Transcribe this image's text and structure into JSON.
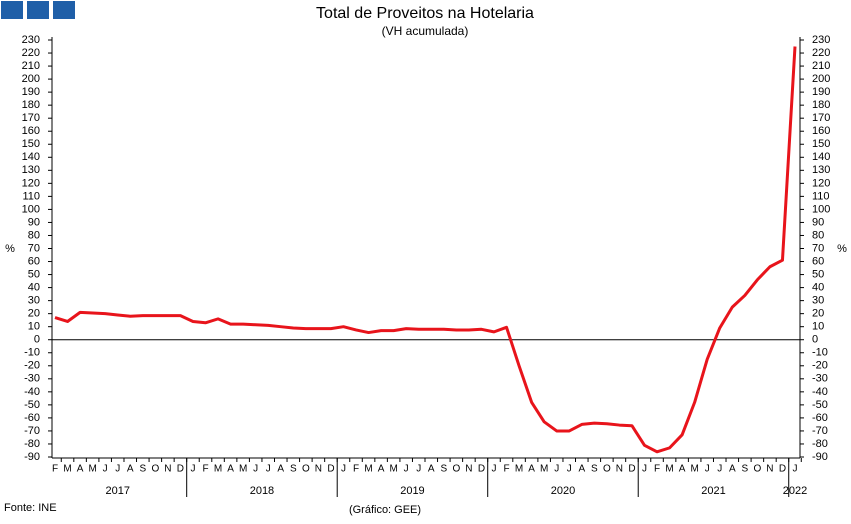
{
  "chart_data": {
    "type": "line",
    "title": "Total de Proveitos na Hotelaria",
    "subtitle": "(VH acumulada)",
    "y_label": "%",
    "source": "Fonte: INE",
    "credit": "(Gráfico: GEE)",
    "color": "#e8141b",
    "categories": [
      "F",
      "M",
      "A",
      "M",
      "J",
      "J",
      "A",
      "S",
      "O",
      "N",
      "D",
      "J",
      "F",
      "M",
      "A",
      "M",
      "J",
      "J",
      "A",
      "S",
      "O",
      "N",
      "D",
      "J",
      "F",
      "M",
      "A",
      "M",
      "J",
      "J",
      "A",
      "S",
      "O",
      "N",
      "D",
      "J",
      "F",
      "M",
      "A",
      "M",
      "J",
      "J",
      "A",
      "S",
      "O",
      "N",
      "D",
      "J",
      "F",
      "M",
      "A",
      "M",
      "J",
      "J",
      "A",
      "S",
      "O",
      "N",
      "D",
      "J"
    ],
    "years": [
      {
        "label": "2017",
        "months": 11
      },
      {
        "label": "2018",
        "months": 12
      },
      {
        "label": "2019",
        "months": 12
      },
      {
        "label": "2020",
        "months": 12
      },
      {
        "label": "2021",
        "months": 12
      },
      {
        "label": "2022",
        "months": 1
      }
    ],
    "values": [
      17,
      14,
      21,
      20.5,
      20,
      19,
      18,
      18.5,
      18.5,
      18.5,
      18.5,
      14,
      13,
      16,
      12,
      12,
      11.5,
      11,
      10,
      9,
      8.5,
      8.5,
      8.5,
      10,
      7.5,
      5.5,
      7,
      7,
      8.5,
      8,
      8,
      8,
      7.5,
      7.5,
      8,
      6,
      9.5,
      -20,
      -48,
      -63,
      -70,
      -70,
      -65,
      -64,
      -64.5,
      -65.5,
      -66,
      -81,
      -86,
      -83,
      -73,
      -48,
      -15,
      9,
      25,
      34,
      46,
      56,
      61,
      225
    ],
    "ylim": [
      -90,
      230
    ],
    "yticks": [
      -90,
      -80,
      -70,
      -60,
      -50,
      -40,
      -30,
      -20,
      -10,
      0,
      10,
      20,
      30,
      40,
      50,
      60,
      70,
      80,
      90,
      100,
      110,
      120,
      130,
      140,
      150,
      160,
      170,
      180,
      190,
      200,
      210,
      220,
      230
    ]
  }
}
